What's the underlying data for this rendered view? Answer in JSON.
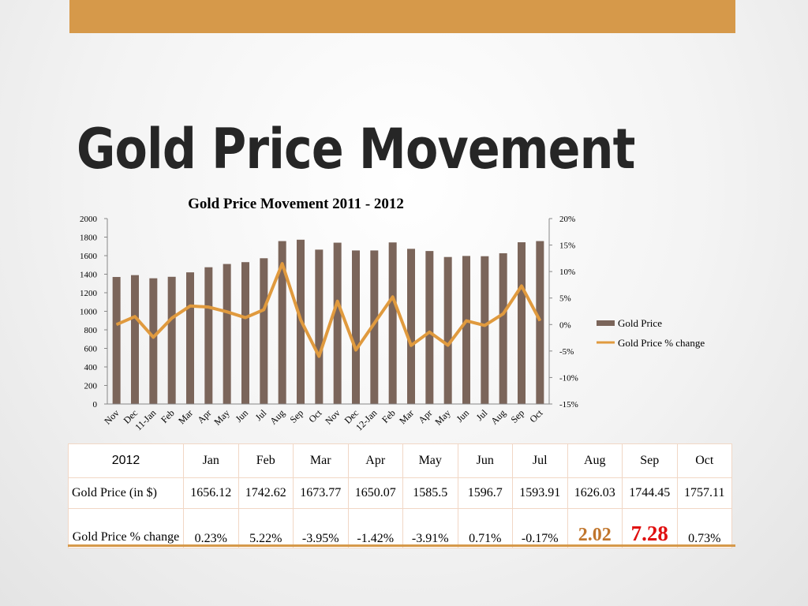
{
  "slide": {
    "title": "Gold Price Movement",
    "accent_color": "#d6994a"
  },
  "chart_data": {
    "type": "bar",
    "title": "Gold Price Movement 2011 - 2012",
    "categories": [
      "Nov",
      "Dec",
      "11-Jan",
      "Feb",
      "Mar",
      "Apr",
      "May",
      "Jun",
      "Jul",
      "Aug",
      "Sep",
      "Oct",
      "Nov",
      "Dec",
      "12-Jan",
      "Feb",
      "Mar",
      "Apr",
      "May",
      "Jun",
      "Jul",
      "Aug",
      "Sep",
      "Oct"
    ],
    "series": [
      {
        "name": "Gold Price",
        "type": "bar",
        "axis": "left",
        "color": "#7b655a",
        "values": [
          1370,
          1390,
          1356,
          1372,
          1420,
          1475,
          1510,
          1530,
          1572,
          1757,
          1772,
          1665,
          1740,
          1656.12,
          1656.12,
          1742.62,
          1673.77,
          1650.07,
          1585.5,
          1596.7,
          1593.91,
          1626.03,
          1744.45,
          1757.11
        ]
      },
      {
        "name": "Gold Price % change",
        "type": "line",
        "axis": "right",
        "color": "#e09a3e",
        "values": [
          0.0,
          1.5,
          -2.4,
          1.2,
          3.5,
          3.3,
          2.4,
          1.3,
          2.8,
          11.5,
          0.9,
          -6.0,
          4.4,
          -4.8,
          0.23,
          5.22,
          -3.95,
          -1.42,
          -3.91,
          0.71,
          -0.17,
          2.02,
          7.28,
          0.73
        ]
      }
    ],
    "y_left": {
      "min": 0,
      "max": 2000,
      "ticks": [
        "0",
        "200",
        "400",
        "600",
        "800",
        "1000",
        "1200",
        "1400",
        "1600",
        "1800",
        "2000"
      ]
    },
    "y_right": {
      "min": -15,
      "max": 20,
      "ticks": [
        "-15%",
        "-10%",
        "-5%",
        "0%",
        "5%",
        "10%",
        "15%",
        "20%"
      ]
    },
    "xlabel": "",
    "ylabel": "",
    "grid": false,
    "legend": "right"
  },
  "table": {
    "year_label": "2012",
    "months": [
      "Jan",
      "Feb",
      "Mar",
      "Apr",
      "May",
      "Jun",
      "Jul",
      "Aug",
      "Sep",
      "Oct"
    ],
    "price_label": "Gold Price (in $)",
    "prices": [
      "1656.12",
      "1742.62",
      "1673.77",
      "1650.07",
      "1585.5",
      "1596.7",
      "1593.91",
      "1626.03",
      "1744.45",
      "1757.11"
    ],
    "change_label": "Gold Price % change",
    "changes": [
      "0.23%",
      "5.22%",
      "-3.95%",
      "-1.42%",
      "-3.91%",
      "0.71%",
      "-0.17%",
      "2.02",
      "7.28",
      "0.73%"
    ]
  }
}
